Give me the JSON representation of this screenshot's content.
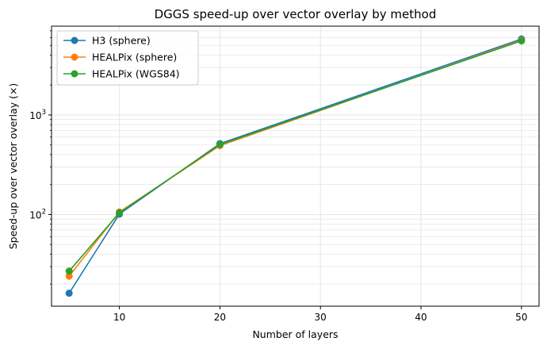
{
  "chart_data": {
    "type": "line",
    "title": "DGGS speed-up over vector overlay by method",
    "xlabel": "Number of layers",
    "ylabel": "Speed-up over vector overlay (×)",
    "x": [
      5,
      10,
      20,
      50
    ],
    "xlim": [
      3.25,
      51.75
    ],
    "xticks": [
      10,
      20,
      30,
      40,
      50
    ],
    "ylim": [
      12,
      7800
    ],
    "yscale": "log",
    "yticks": [
      {
        "value": 100,
        "base": "10",
        "exp": "2"
      },
      {
        "value": 1000,
        "base": "10",
        "exp": "3"
      }
    ],
    "grid": true,
    "legend_position": "top-left",
    "series": [
      {
        "name": "H3 (sphere)",
        "color": "#1f77b4",
        "values": [
          16.2,
          101,
          515,
          5800
        ]
      },
      {
        "name": "HEALPix (sphere)",
        "color": "#ff7f0e",
        "values": [
          24,
          106,
          492,
          5650
        ]
      },
      {
        "name": "HEALPix (WGS84)",
        "color": "#2ca02c",
        "values": [
          27,
          104,
          505,
          5550
        ]
      }
    ]
  }
}
